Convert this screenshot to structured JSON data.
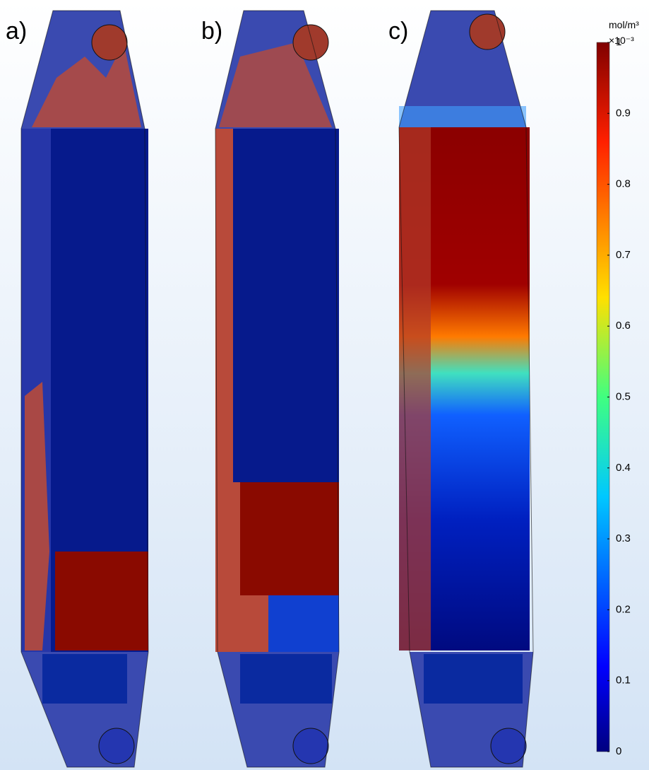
{
  "panels": [
    {
      "label": "a)"
    },
    {
      "label": "b)"
    },
    {
      "label": "c)"
    }
  ],
  "colorbar": {
    "unit": "mol/m³",
    "multiplier": "×10⁻³",
    "lim": [
      0,
      1
    ],
    "ticks": [
      0,
      0.1,
      0.2,
      0.3,
      0.4,
      0.5,
      0.6,
      0.7,
      0.8,
      0.9,
      1
    ]
  }
}
